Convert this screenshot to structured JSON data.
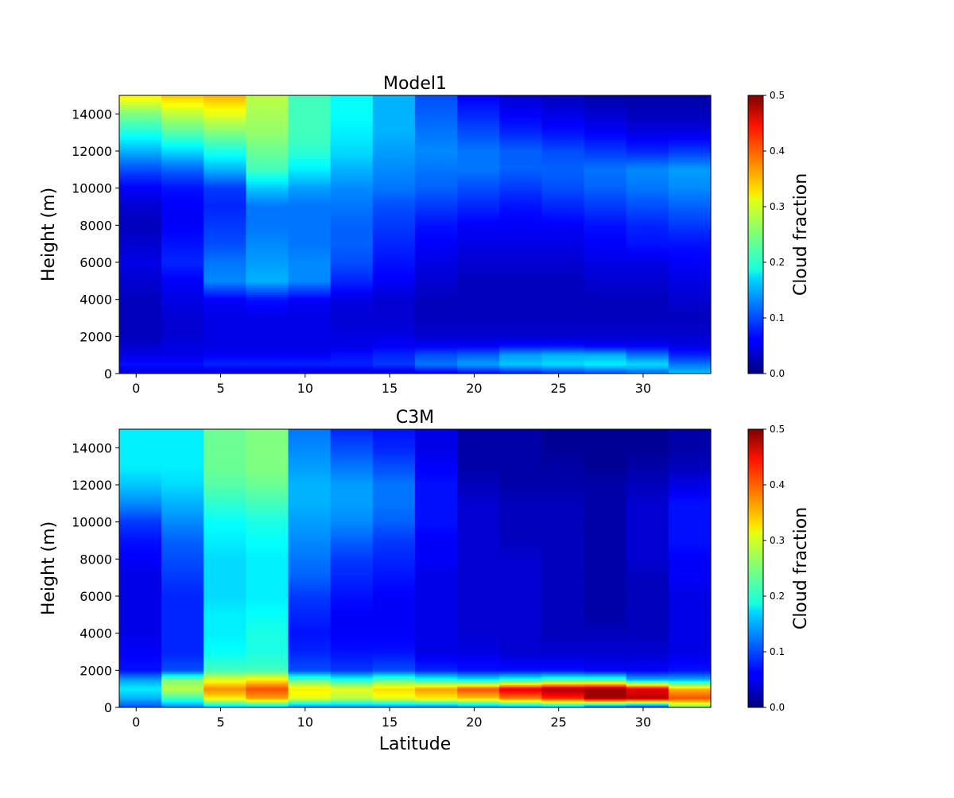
{
  "figure": {
    "xlabel": "Latitude"
  },
  "chart_data": [
    {
      "type": "heatmap",
      "title": "Model1",
      "ylabel": "Height (m)",
      "colorbar_label": "Cloud fraction",
      "colormap": "jet",
      "clim": [
        0,
        0.5
      ],
      "colorbar_ticks": [
        "0.0",
        "0.1",
        "0.2",
        "0.3",
        "0.4",
        "0.5"
      ],
      "xlim": [
        -1,
        34
      ],
      "ylim": [
        0,
        15000
      ],
      "x_ticks": [
        "0",
        "5",
        "10",
        "15",
        "20",
        "25",
        "30"
      ],
      "y_ticks": [
        "0",
        "2000",
        "4000",
        "6000",
        "8000",
        "10000",
        "12000",
        "14000"
      ],
      "x": [
        0.25,
        2.75,
        5.25,
        7.75,
        10.25,
        12.75,
        15.25,
        17.75,
        20.25,
        22.75,
        25.25,
        27.75,
        30.25,
        32.75
      ],
      "height_levels": [
        0,
        500,
        1000,
        1500,
        2000,
        3000,
        4000,
        5000,
        6000,
        7000,
        8000,
        9000,
        10000,
        11000,
        12000,
        13000,
        14000,
        15000
      ],
      "columns": [
        [
          0.04,
          0.07,
          0.05,
          0.04,
          0.03,
          0.03,
          0.03,
          0.04,
          0.05,
          0.04,
          0.03,
          0.04,
          0.06,
          0.1,
          0.15,
          0.2,
          0.25,
          0.32
        ],
        [
          0.04,
          0.07,
          0.05,
          0.05,
          0.04,
          0.04,
          0.05,
          0.06,
          0.08,
          0.07,
          0.06,
          0.06,
          0.07,
          0.11,
          0.17,
          0.23,
          0.28,
          0.34
        ],
        [
          0.04,
          0.08,
          0.06,
          0.05,
          0.05,
          0.05,
          0.06,
          0.13,
          0.12,
          0.1,
          0.09,
          0.08,
          0.09,
          0.15,
          0.2,
          0.25,
          0.3,
          0.35
        ],
        [
          0.04,
          0.08,
          0.06,
          0.05,
          0.05,
          0.05,
          0.07,
          0.15,
          0.14,
          0.13,
          0.12,
          0.12,
          0.16,
          0.22,
          0.24,
          0.26,
          0.27,
          0.28
        ],
        [
          0.04,
          0.08,
          0.06,
          0.05,
          0.05,
          0.05,
          0.06,
          0.13,
          0.13,
          0.12,
          0.12,
          0.12,
          0.14,
          0.18,
          0.21,
          0.22,
          0.22,
          0.22
        ],
        [
          0.04,
          0.08,
          0.07,
          0.05,
          0.05,
          0.04,
          0.05,
          0.08,
          0.1,
          0.11,
          0.11,
          0.12,
          0.13,
          0.15,
          0.17,
          0.18,
          0.19,
          0.19
        ],
        [
          0.04,
          0.09,
          0.08,
          0.06,
          0.05,
          0.04,
          0.04,
          0.06,
          0.07,
          0.08,
          0.09,
          0.1,
          0.12,
          0.13,
          0.14,
          0.15,
          0.15,
          0.15
        ],
        [
          0.05,
          0.12,
          0.1,
          0.06,
          0.04,
          0.03,
          0.03,
          0.04,
          0.05,
          0.06,
          0.07,
          0.09,
          0.11,
          0.12,
          0.13,
          0.12,
          0.11,
          0.1
        ],
        [
          0.06,
          0.14,
          0.11,
          0.06,
          0.04,
          0.03,
          0.03,
          0.03,
          0.04,
          0.05,
          0.06,
          0.08,
          0.1,
          0.12,
          0.12,
          0.1,
          0.08,
          0.06
        ],
        [
          0.07,
          0.16,
          0.14,
          0.07,
          0.04,
          0.03,
          0.03,
          0.03,
          0.04,
          0.05,
          0.06,
          0.07,
          0.09,
          0.11,
          0.11,
          0.08,
          0.06,
          0.04
        ],
        [
          0.08,
          0.17,
          0.15,
          0.07,
          0.04,
          0.03,
          0.03,
          0.03,
          0.04,
          0.05,
          0.06,
          0.08,
          0.1,
          0.11,
          0.1,
          0.07,
          0.05,
          0.03
        ],
        [
          0.09,
          0.18,
          0.15,
          0.06,
          0.04,
          0.03,
          0.03,
          0.04,
          0.05,
          0.06,
          0.07,
          0.09,
          0.11,
          0.12,
          0.09,
          0.06,
          0.04,
          0.02
        ],
        [
          0.11,
          0.17,
          0.12,
          0.06,
          0.04,
          0.03,
          0.03,
          0.04,
          0.05,
          0.07,
          0.08,
          0.1,
          0.12,
          0.13,
          0.08,
          0.05,
          0.03,
          0.02
        ],
        [
          0.16,
          0.12,
          0.08,
          0.05,
          0.04,
          0.03,
          0.04,
          0.05,
          0.06,
          0.07,
          0.09,
          0.11,
          0.13,
          0.14,
          0.09,
          0.05,
          0.03,
          0.02
        ]
      ]
    },
    {
      "type": "heatmap",
      "title": "C3M",
      "ylabel": "Height (m)",
      "colorbar_label": "Cloud fraction",
      "colormap": "jet",
      "clim": [
        0,
        0.5
      ],
      "colorbar_ticks": [
        "0.0",
        "0.1",
        "0.2",
        "0.3",
        "0.4",
        "0.5"
      ],
      "xlim": [
        -1,
        34
      ],
      "ylim": [
        0,
        15000
      ],
      "x_ticks": [
        "0",
        "5",
        "10",
        "15",
        "20",
        "25",
        "30"
      ],
      "y_ticks": [
        "0",
        "2000",
        "4000",
        "6000",
        "8000",
        "10000",
        "12000",
        "14000"
      ],
      "x": [
        0.25,
        2.75,
        5.25,
        7.75,
        10.25,
        12.75,
        15.25,
        17.75,
        20.25,
        22.75,
        25.25,
        27.75,
        30.25,
        32.75
      ],
      "height_levels": [
        0,
        500,
        1000,
        1500,
        2000,
        3000,
        4000,
        5000,
        6000,
        7000,
        8000,
        9000,
        10000,
        11000,
        12000,
        13000,
        14000,
        15000
      ],
      "columns": [
        [
          0.1,
          0.15,
          0.18,
          0.14,
          0.07,
          0.06,
          0.05,
          0.05,
          0.05,
          0.05,
          0.06,
          0.07,
          0.09,
          0.13,
          0.16,
          0.18,
          0.18,
          0.18
        ],
        [
          0.12,
          0.22,
          0.28,
          0.25,
          0.1,
          0.08,
          0.08,
          0.08,
          0.08,
          0.09,
          0.1,
          0.11,
          0.13,
          0.15,
          0.17,
          0.18,
          0.18,
          0.18
        ],
        [
          0.15,
          0.32,
          0.37,
          0.3,
          0.22,
          0.19,
          0.18,
          0.18,
          0.17,
          0.17,
          0.17,
          0.18,
          0.19,
          0.21,
          0.23,
          0.24,
          0.24,
          0.24
        ],
        [
          0.15,
          0.36,
          0.4,
          0.32,
          0.22,
          0.2,
          0.2,
          0.19,
          0.18,
          0.18,
          0.18,
          0.19,
          0.2,
          0.22,
          0.24,
          0.25,
          0.25,
          0.25
        ],
        [
          0.12,
          0.3,
          0.32,
          0.23,
          0.1,
          0.08,
          0.07,
          0.08,
          0.09,
          0.11,
          0.12,
          0.13,
          0.14,
          0.15,
          0.15,
          0.14,
          0.13,
          0.12
        ],
        [
          0.12,
          0.28,
          0.3,
          0.2,
          0.09,
          0.07,
          0.06,
          0.06,
          0.07,
          0.08,
          0.09,
          0.11,
          0.13,
          0.14,
          0.14,
          0.12,
          0.1,
          0.08
        ],
        [
          0.12,
          0.3,
          0.33,
          0.23,
          0.1,
          0.07,
          0.06,
          0.06,
          0.06,
          0.07,
          0.08,
          0.09,
          0.11,
          0.12,
          0.12,
          0.1,
          0.08,
          0.07
        ],
        [
          0.11,
          0.32,
          0.36,
          0.2,
          0.08,
          0.05,
          0.05,
          0.05,
          0.05,
          0.05,
          0.06,
          0.06,
          0.07,
          0.07,
          0.07,
          0.06,
          0.05,
          0.05
        ],
        [
          0.12,
          0.34,
          0.4,
          0.18,
          0.07,
          0.05,
          0.04,
          0.04,
          0.04,
          0.04,
          0.04,
          0.04,
          0.04,
          0.04,
          0.03,
          0.02,
          0.02,
          0.02
        ],
        [
          0.13,
          0.38,
          0.45,
          0.2,
          0.07,
          0.04,
          0.04,
          0.04,
          0.04,
          0.04,
          0.04,
          0.03,
          0.03,
          0.03,
          0.02,
          0.02,
          0.02,
          0.02
        ],
        [
          0.14,
          0.42,
          0.48,
          0.22,
          0.07,
          0.04,
          0.03,
          0.03,
          0.03,
          0.03,
          0.03,
          0.03,
          0.03,
          0.03,
          0.02,
          0.02,
          0.01,
          0.01
        ],
        [
          0.08,
          0.48,
          0.49,
          0.22,
          0.06,
          0.04,
          0.03,
          0.02,
          0.02,
          0.02,
          0.02,
          0.02,
          0.02,
          0.02,
          0.02,
          0.01,
          0.01,
          0.01
        ],
        [
          0.05,
          0.47,
          0.45,
          0.15,
          0.06,
          0.04,
          0.03,
          0.03,
          0.03,
          0.03,
          0.04,
          0.04,
          0.04,
          0.04,
          0.03,
          0.02,
          0.01,
          0.01
        ],
        [
          0.23,
          0.4,
          0.35,
          0.15,
          0.07,
          0.05,
          0.05,
          0.05,
          0.05,
          0.06,
          0.06,
          0.07,
          0.07,
          0.07,
          0.05,
          0.03,
          0.02,
          0.02
        ]
      ]
    }
  ]
}
